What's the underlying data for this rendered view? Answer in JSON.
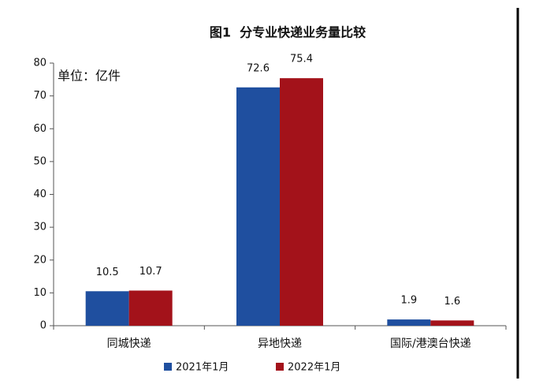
{
  "chart_data": {
    "type": "bar",
    "title": "图1  分专业快递业务量比较",
    "annotation": "单位：亿件",
    "categories": [
      "同城快递",
      "异地快递",
      "国际/港澳台快递"
    ],
    "series": [
      {
        "name": "2021年1月",
        "color": "#1f4f9f",
        "values": [
          10.5,
          72.6,
          1.9
        ]
      },
      {
        "name": "2022年1月",
        "color": "#a3121a",
        "values": [
          10.7,
          75.4,
          1.6
        ]
      }
    ],
    "ylim": [
      0,
      80
    ],
    "yticks": [
      0,
      10,
      20,
      30,
      40,
      50,
      60,
      70,
      80
    ],
    "grid": false,
    "legend": "bottom"
  }
}
